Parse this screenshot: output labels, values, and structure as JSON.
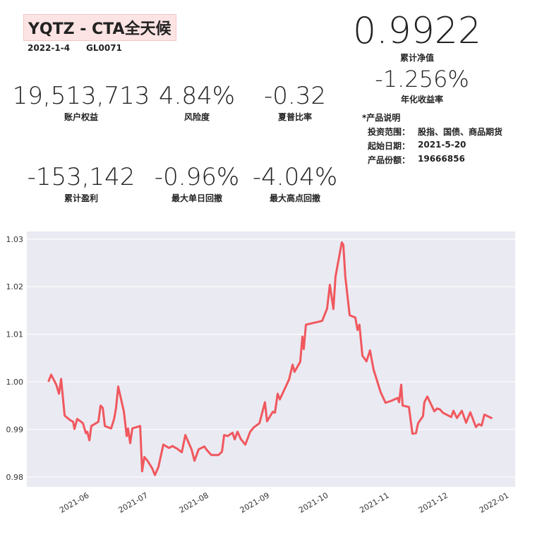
{
  "header": {
    "title": "YQTZ - CTA全天候",
    "date": "2022-1-4",
    "code": "GL0071"
  },
  "nav": {
    "value": "0.9922",
    "label": "累计净值"
  },
  "annual": {
    "value": "-1.256%",
    "label": "年化收益率"
  },
  "metrics": [
    {
      "value": "19,513,713",
      "label": "账户权益"
    },
    {
      "value": "4.84%",
      "label": "风险度"
    },
    {
      "value": "-0.32",
      "label": "夏普比率"
    },
    {
      "value": "-153,142",
      "label": "累计盈利"
    },
    {
      "value": "-0.96%",
      "label": "最大单日回撤"
    },
    {
      "value": "-4.04%",
      "label": "最大高点回撤"
    }
  ],
  "product": {
    "title": "*产品说明",
    "rows": [
      [
        "投资范围：",
        "股指、国债、商品期货"
      ],
      [
        "起始日期：",
        "2021-5-20"
      ],
      [
        "产品份额：",
        "19666856"
      ]
    ]
  },
  "chart_data": {
    "type": "line",
    "color": "#f0585e",
    "grid": true,
    "x": [
      0,
      1.4,
      4,
      5.4,
      6.5,
      8.3,
      11.2,
      12.6,
      13.3,
      14.7,
      17.6,
      19.1,
      19.8,
      20.9,
      21.9,
      25.5,
      26.6,
      27.7,
      28.8,
      32,
      33.5,
      34.5,
      35.6,
      38.5,
      39.9,
      40.6,
      41.7,
      42.8,
      46.8,
      47.8,
      48.9,
      50.7,
      52.9,
      54.3,
      56.1,
      58.6,
      61.5,
      63.3,
      65.8,
      68,
      69.8,
      73,
      74.5,
      76.6,
      79.5,
      80.9,
      83.1,
      86.7,
      88.5,
      89.6,
      91.4,
      93.9,
      95,
      96.4,
      98.2,
      100.4,
      102.9,
      104.7,
      107.6,
      110.4,
      111.5,
      114.4,
      115.5,
      116.9,
      118,
      122.7,
      124.5,
      125.5,
      128.4,
      129.5,
      130.2,
      131.3,
      139.6,
      142.1,
      143.5,
      145.3,
      146.4,
      149.6,
      150.4,
      151.4,
      153.6,
      156.5,
      157.6,
      158.6,
      160.1,
      162.2,
      164,
      165.8,
      169.4,
      171.9,
      174.8,
      178.1,
      178.8,
      179.9,
      180.6,
      183.8,
      185.6,
      187.4,
      188.5,
      191,
      191.7,
      193.2,
      196.8,
      198.2,
      199.6,
      201.1,
      205.4,
      206.5,
      208.3,
      210.8,
      213,
      215.1,
      218,
      219.4,
      220.9,
      222.3,
      226.3
    ],
    "values": [
      1.0,
      1.0015,
      0.9994,
      0.9975,
      1.0006,
      0.9929,
      0.9919,
      0.9916,
      0.9901,
      0.9922,
      0.9913,
      0.9892,
      0.9895,
      0.9877,
      0.9907,
      0.9916,
      0.995,
      0.9945,
      0.9907,
      0.9902,
      0.9922,
      0.9945,
      0.999,
      0.9937,
      0.9886,
      0.9902,
      0.9871,
      0.9902,
      0.9907,
      0.9812,
      0.9842,
      0.9833,
      0.9818,
      0.9804,
      0.9821,
      0.9868,
      0.9861,
      0.9865,
      0.9859,
      0.9852,
      0.9888,
      0.9858,
      0.9834,
      0.9858,
      0.9864,
      0.9856,
      0.9846,
      0.9846,
      0.9853,
      0.9888,
      0.9886,
      0.9893,
      0.9879,
      0.9895,
      0.9879,
      0.9868,
      0.9895,
      0.9904,
      0.9913,
      0.9957,
      0.9917,
      0.9937,
      0.9935,
      0.9975,
      0.9963,
      1.0005,
      1.0036,
      1.0021,
      1.0042,
      1.0095,
      1.0069,
      1.012,
      1.0128,
      1.0154,
      1.0204,
      1.0153,
      1.0221,
      1.0293,
      1.0288,
      1.0221,
      1.014,
      1.0135,
      1.0109,
      1.012,
      1.0055,
      1.0043,
      1.0066,
      1.0026,
      0.9978,
      0.9956,
      0.996,
      0.9966,
      0.9957,
      0.9994,
      0.995,
      0.9947,
      0.9891,
      0.9892,
      0.9913,
      0.9928,
      0.9957,
      0.9969,
      0.9938,
      0.9944,
      0.9942,
      0.9935,
      0.9926,
      0.9939,
      0.9924,
      0.9939,
      0.9914,
      0.9936,
      0.9905,
      0.9911,
      0.9908,
      0.9931,
      0.9923
    ],
    "xlim": [
      -11,
      238
    ],
    "ylim": [
      0.9779,
      1.0316
    ],
    "xticks": [
      {
        "value": 21,
        "label": "2021-06"
      },
      {
        "value": 51,
        "label": "2021-07"
      },
      {
        "value": 82,
        "label": "2021-08"
      },
      {
        "value": 113,
        "label": "2021-09"
      },
      {
        "value": 143,
        "label": "2021-10"
      },
      {
        "value": 174,
        "label": "2021-11"
      },
      {
        "value": 204,
        "label": "2021-12"
      },
      {
        "value": 235,
        "label": "2022-01"
      }
    ],
    "yticks": [
      0.98,
      0.99,
      {
        "value": 1.0,
        "label": "1.00"
      },
      1.01,
      1.02,
      1.03
    ]
  }
}
